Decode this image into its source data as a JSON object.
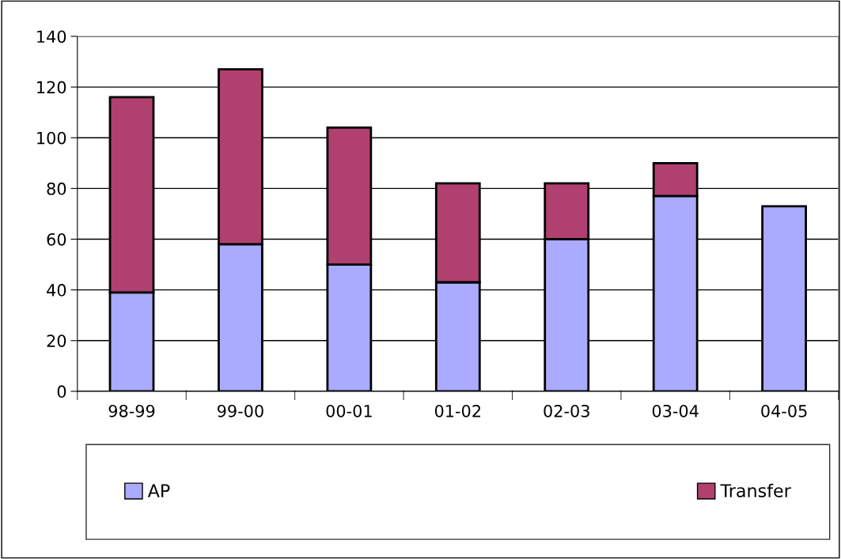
{
  "chart_data": {
    "type": "bar",
    "stacked": true,
    "categories": [
      "98-99",
      "99-00",
      "00-01",
      "01-02",
      "02-03",
      "03-04",
      "04-05"
    ],
    "series": [
      {
        "name": "AP",
        "color": "#aaaaff",
        "values": [
          39,
          58,
          50,
          43,
          60,
          77,
          73
        ]
      },
      {
        "name": "Transfer",
        "color": "#b04070",
        "values": [
          77,
          69,
          54,
          39,
          22,
          13,
          null
        ]
      }
    ],
    "ylim": [
      0,
      140
    ],
    "yticks": [
      0,
      20,
      40,
      60,
      80,
      100,
      120,
      140
    ],
    "grid": "y",
    "legend": "bottom"
  }
}
